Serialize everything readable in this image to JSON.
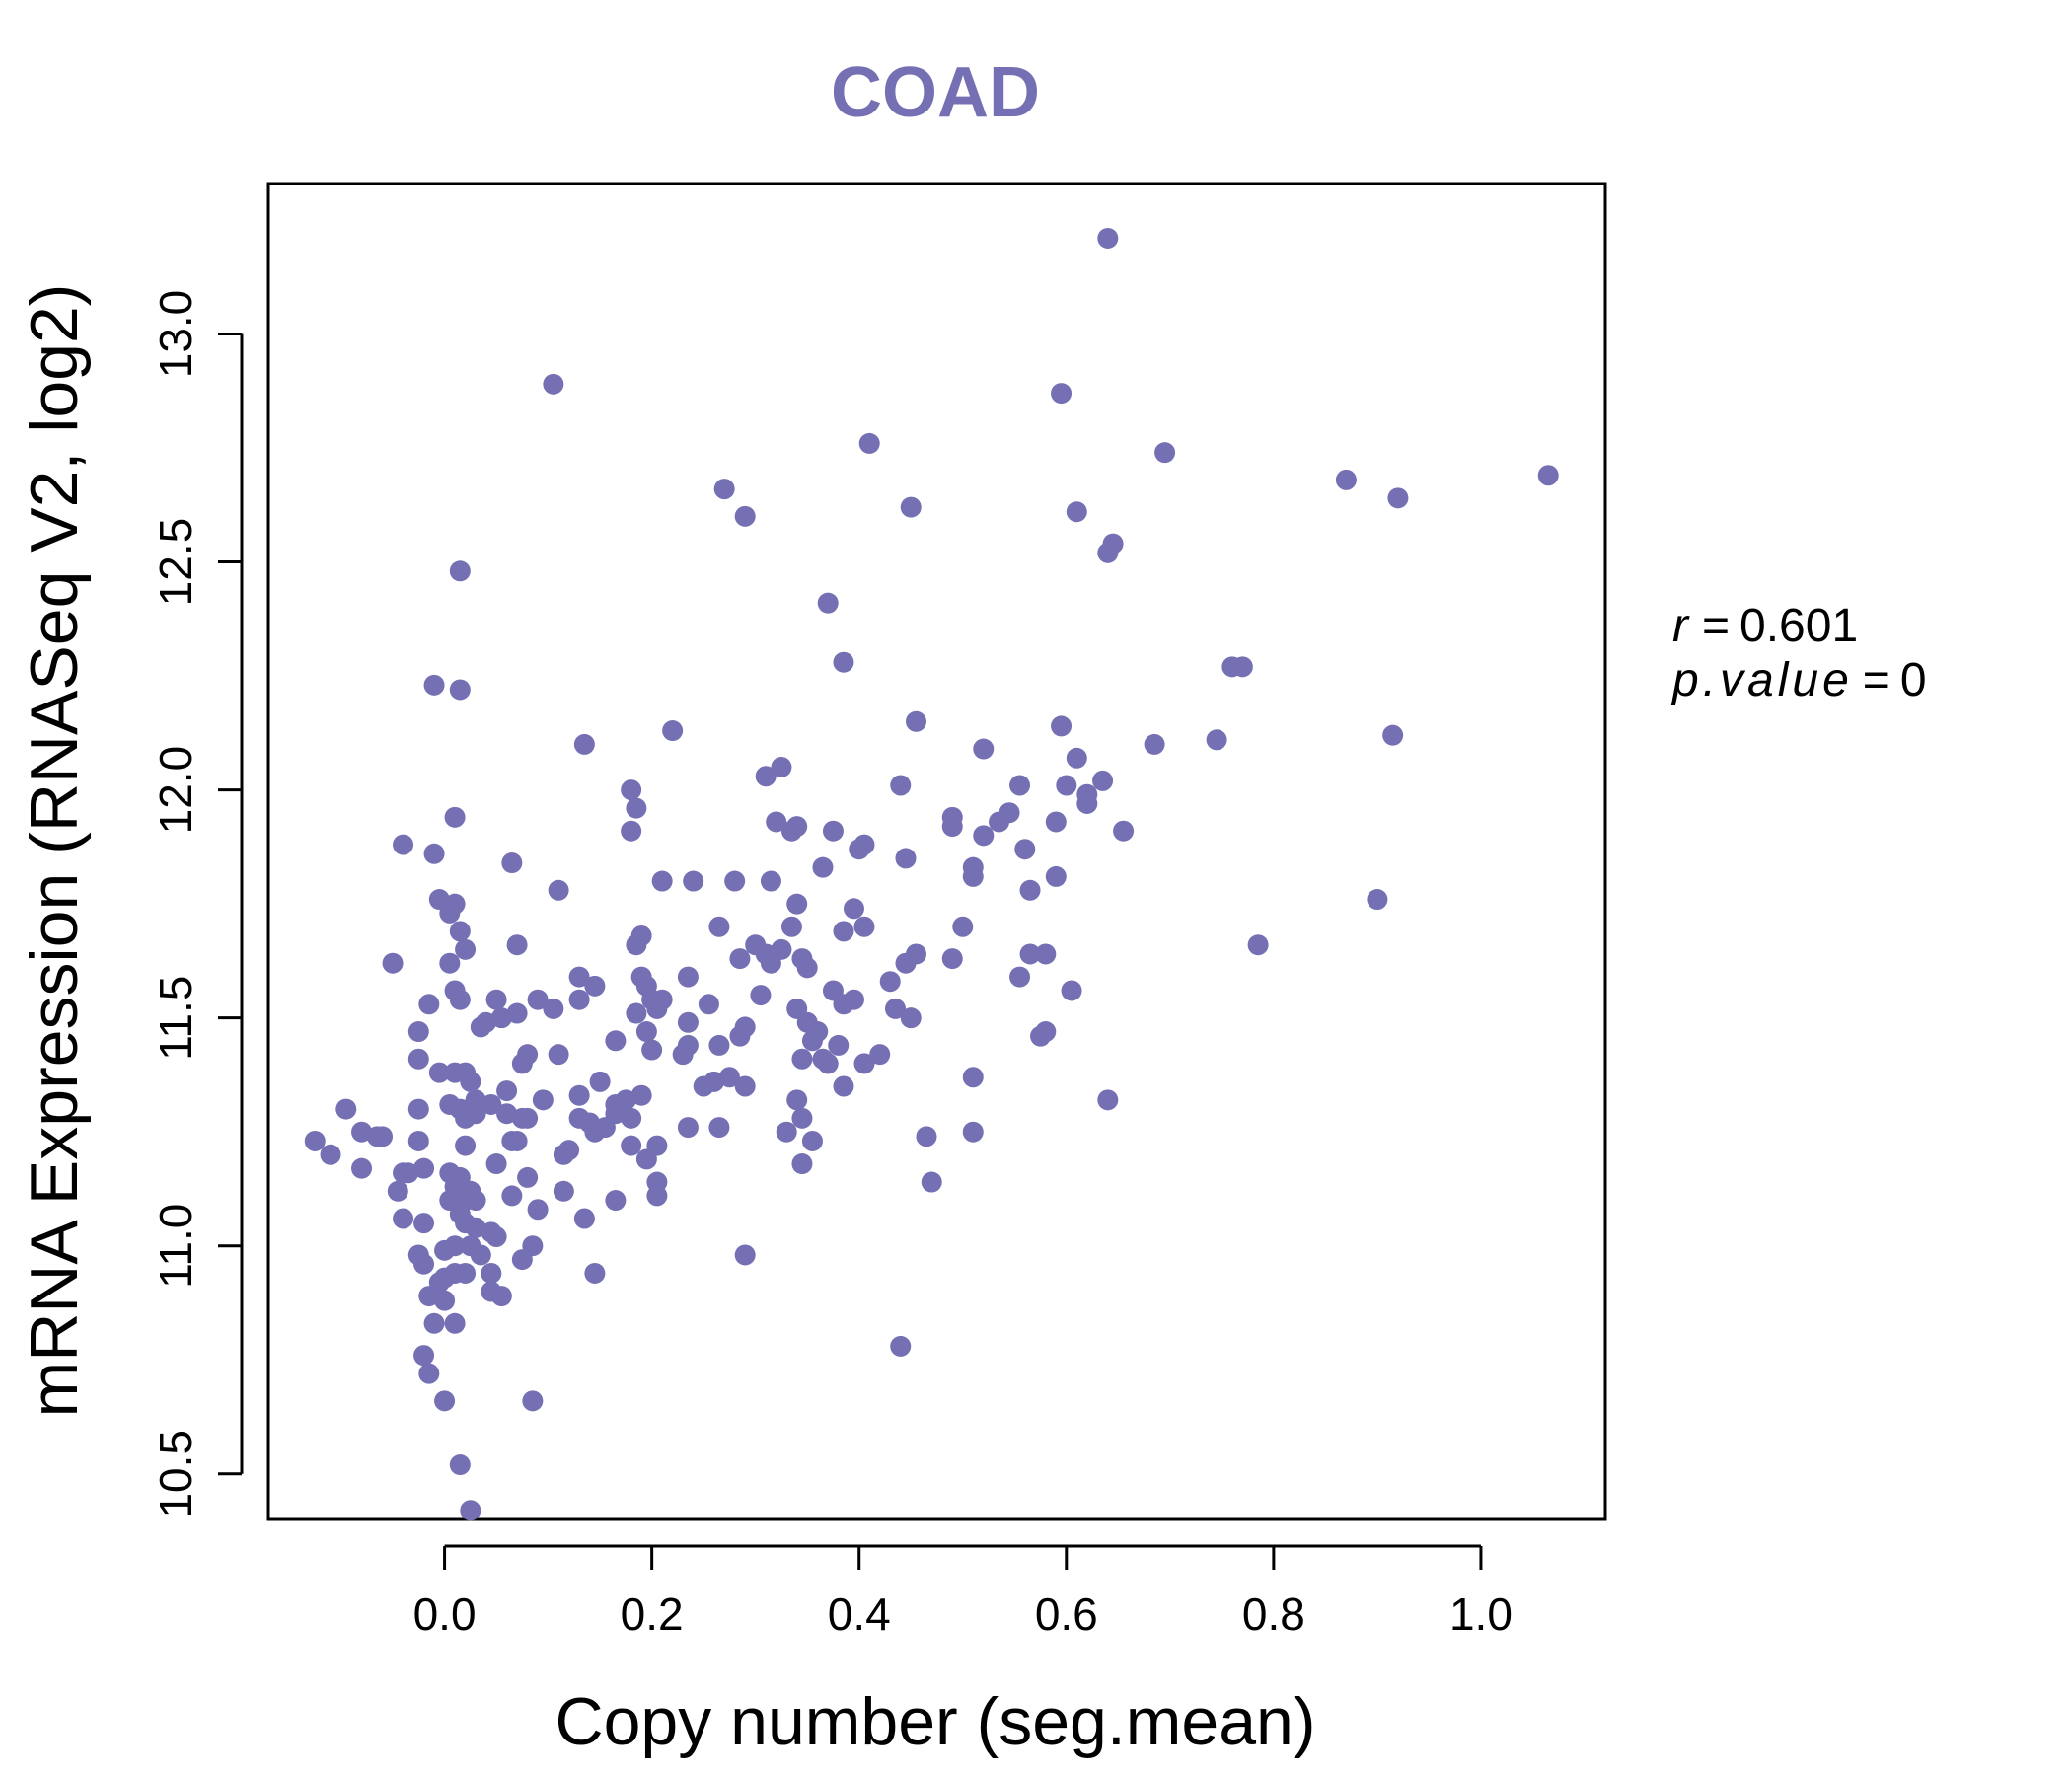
{
  "chart_data": {
    "type": "scatter",
    "title": "COAD",
    "xlabel": "Copy number (seg.mean)",
    "ylabel": "mRNA Expression (RNASeq V2, log2)",
    "xlim": [
      -0.17,
      1.12
    ],
    "ylim": [
      10.4,
      13.33
    ],
    "x_ticks": [
      0.0,
      0.2,
      0.4,
      0.6,
      0.8,
      1.0
    ],
    "x_tick_labels": [
      "0.0",
      "0.2",
      "0.4",
      "0.6",
      "0.8",
      "1.0"
    ],
    "y_ticks": [
      10.5,
      11.0,
      11.5,
      12.0,
      12.5,
      13.0
    ],
    "y_tick_labels": [
      "10.5",
      "11.0",
      "11.5",
      "12.0",
      "12.5",
      "13.0"
    ],
    "point_color": "#7570b3",
    "stats": {
      "r_label": "r",
      "r_value": "0.601",
      "p_label": "p.value",
      "p_value": "0"
    },
    "points": [
      [
        0.64,
        13.21
      ],
      [
        0.105,
        12.89
      ],
      [
        0.595,
        12.87
      ],
      [
        0.41,
        12.76
      ],
      [
        0.695,
        12.74
      ],
      [
        0.87,
        12.68
      ],
      [
        1.065,
        12.69
      ],
      [
        0.92,
        12.64
      ],
      [
        0.27,
        12.66
      ],
      [
        0.29,
        12.6
      ],
      [
        0.45,
        12.62
      ],
      [
        0.61,
        12.61
      ],
      [
        0.645,
        12.54
      ],
      [
        0.64,
        12.52
      ],
      [
        0.015,
        12.48
      ],
      [
        0.37,
        12.41
      ],
      [
        0.385,
        12.28
      ],
      [
        0.76,
        12.27
      ],
      [
        0.77,
        12.27
      ],
      [
        -0.01,
        12.23
      ],
      [
        0.015,
        12.22
      ],
      [
        0.455,
        12.15
      ],
      [
        0.595,
        12.14
      ],
      [
        0.22,
        12.13
      ],
      [
        0.915,
        12.12
      ],
      [
        0.135,
        12.1
      ],
      [
        0.52,
        12.09
      ],
      [
        0.685,
        12.1
      ],
      [
        0.745,
        12.11
      ],
      [
        0.61,
        12.07
      ],
      [
        0.31,
        12.03
      ],
      [
        0.325,
        12.05
      ],
      [
        0.44,
        12.01
      ],
      [
        0.555,
        12.01
      ],
      [
        0.6,
        12.01
      ],
      [
        0.62,
        11.99
      ],
      [
        0.635,
        12.02
      ],
      [
        0.18,
        12.0
      ],
      [
        0.185,
        11.96
      ],
      [
        0.62,
        11.97
      ],
      [
        0.545,
        11.95
      ],
      [
        0.49,
        11.94
      ],
      [
        0.49,
        11.92
      ],
      [
        0.01,
        11.94
      ],
      [
        0.32,
        11.93
      ],
      [
        0.335,
        11.91
      ],
      [
        0.34,
        11.92
      ],
      [
        0.375,
        11.91
      ],
      [
        0.535,
        11.93
      ],
      [
        0.59,
        11.93
      ],
      [
        0.655,
        11.91
      ],
      [
        0.18,
        11.91
      ],
      [
        0.52,
        11.9
      ],
      [
        0.4,
        11.87
      ],
      [
        0.405,
        11.88
      ],
      [
        -0.04,
        11.88
      ],
      [
        0.56,
        11.87
      ],
      [
        -0.01,
        11.86
      ],
      [
        0.065,
        11.84
      ],
      [
        0.445,
        11.85
      ],
      [
        0.365,
        11.83
      ],
      [
        0.51,
        11.83
      ],
      [
        0.51,
        11.81
      ],
      [
        0.21,
        11.8
      ],
      [
        0.24,
        11.8
      ],
      [
        0.28,
        11.8
      ],
      [
        0.315,
        11.8
      ],
      [
        0.59,
        11.81
      ],
      [
        0.11,
        11.78
      ],
      [
        0.565,
        11.78
      ],
      [
        -0.005,
        11.76
      ],
      [
        0.01,
        11.75
      ],
      [
        0.34,
        11.75
      ],
      [
        0.9,
        11.76
      ],
      [
        0.005,
        11.73
      ],
      [
        0.395,
        11.74
      ],
      [
        0.5,
        11.7
      ],
      [
        0.015,
        11.69
      ],
      [
        0.265,
        11.7
      ],
      [
        0.335,
        11.7
      ],
      [
        0.385,
        11.69
      ],
      [
        0.405,
        11.7
      ],
      [
        0.19,
        11.68
      ],
      [
        0.185,
        11.66
      ],
      [
        0.3,
        11.66
      ],
      [
        0.02,
        11.65
      ],
      [
        0.07,
        11.66
      ],
      [
        0.31,
        11.64
      ],
      [
        0.325,
        11.65
      ],
      [
        0.345,
        11.63
      ],
      [
        0.455,
        11.64
      ],
      [
        0.445,
        11.62
      ],
      [
        0.565,
        11.64
      ],
      [
        0.58,
        11.64
      ],
      [
        0.785,
        11.66
      ],
      [
        -0.05,
        11.62
      ],
      [
        0.35,
        11.61
      ],
      [
        0.49,
        11.63
      ],
      [
        0.005,
        11.62
      ],
      [
        0.315,
        11.62
      ],
      [
        0.285,
        11.63
      ],
      [
        0.13,
        11.59
      ],
      [
        0.235,
        11.59
      ],
      [
        0.19,
        11.59
      ],
      [
        0.555,
        11.59
      ],
      [
        0.43,
        11.58
      ],
      [
        0.195,
        11.57
      ],
      [
        0.145,
        11.57
      ],
      [
        0.01,
        11.56
      ],
      [
        0.375,
        11.56
      ],
      [
        0.605,
        11.56
      ],
      [
        0.305,
        11.55
      ],
      [
        0.05,
        11.54
      ],
      [
        0.09,
        11.54
      ],
      [
        0.13,
        11.54
      ],
      [
        0.2,
        11.54
      ],
      [
        0.21,
        11.54
      ],
      [
        0.255,
        11.53
      ],
      [
        0.385,
        11.53
      ],
      [
        0.395,
        11.54
      ],
      [
        -0.015,
        11.53
      ],
      [
        0.015,
        11.54
      ],
      [
        0.105,
        11.52
      ],
      [
        0.07,
        11.51
      ],
      [
        0.185,
        11.51
      ],
      [
        0.205,
        11.52
      ],
      [
        0.34,
        11.52
      ],
      [
        0.435,
        11.52
      ],
      [
        0.055,
        11.5
      ],
      [
        0.04,
        11.49
      ],
      [
        0.235,
        11.49
      ],
      [
        0.35,
        11.49
      ],
      [
        0.45,
        11.5
      ],
      [
        0.035,
        11.48
      ],
      [
        -0.025,
        11.47
      ],
      [
        0.29,
        11.48
      ],
      [
        0.195,
        11.47
      ],
      [
        0.285,
        11.46
      ],
      [
        0.36,
        11.47
      ],
      [
        0.355,
        11.45
      ],
      [
        0.58,
        11.47
      ],
      [
        0.575,
        11.46
      ],
      [
        0.165,
        11.45
      ],
      [
        0.265,
        11.44
      ],
      [
        0.38,
        11.44
      ],
      [
        0.2,
        11.43
      ],
      [
        0.23,
        11.42
      ],
      [
        0.235,
        11.44
      ],
      [
        0.11,
        11.42
      ],
      [
        0.08,
        11.42
      ],
      [
        0.345,
        11.41
      ],
      [
        0.365,
        11.41
      ],
      [
        0.42,
        11.42
      ],
      [
        -0.025,
        11.41
      ],
      [
        0.075,
        11.4
      ],
      [
        0.37,
        11.4
      ],
      [
        0.405,
        11.4
      ],
      [
        0.01,
        11.38
      ],
      [
        0.02,
        11.38
      ],
      [
        -0.005,
        11.38
      ],
      [
        0.275,
        11.37
      ],
      [
        0.025,
        11.36
      ],
      [
        0.15,
        11.36
      ],
      [
        0.26,
        11.36
      ],
      [
        0.25,
        11.35
      ],
      [
        0.29,
        11.35
      ],
      [
        0.385,
        11.35
      ],
      [
        0.51,
        11.37
      ],
      [
        0.06,
        11.34
      ],
      [
        0.13,
        11.33
      ],
      [
        0.19,
        11.33
      ],
      [
        0.34,
        11.32
      ],
      [
        0.03,
        11.32
      ],
      [
        0.045,
        11.31
      ],
      [
        0.005,
        11.31
      ],
      [
        0.095,
        11.32
      ],
      [
        0.165,
        11.31
      ],
      [
        0.175,
        11.32
      ],
      [
        0.64,
        11.32
      ],
      [
        -0.095,
        11.3
      ],
      [
        -0.025,
        11.3
      ],
      [
        0.015,
        11.3
      ],
      [
        0.03,
        11.29
      ],
      [
        0.06,
        11.29
      ],
      [
        0.075,
        11.28
      ],
      [
        0.08,
        11.28
      ],
      [
        0.165,
        11.29
      ],
      [
        0.18,
        11.28
      ],
      [
        0.345,
        11.28
      ],
      [
        0.02,
        11.28
      ],
      [
        0.13,
        11.28
      ],
      [
        0.14,
        11.27
      ],
      [
        0.145,
        11.25
      ],
      [
        0.155,
        11.26
      ],
      [
        0.235,
        11.26
      ],
      [
        0.265,
        11.26
      ],
      [
        0.33,
        11.25
      ],
      [
        0.51,
        11.25
      ],
      [
        -0.08,
        11.25
      ],
      [
        -0.065,
        11.24
      ],
      [
        -0.06,
        11.24
      ],
      [
        0.465,
        11.24
      ],
      [
        -0.125,
        11.23
      ],
      [
        -0.025,
        11.23
      ],
      [
        0.07,
        11.23
      ],
      [
        0.065,
        11.23
      ],
      [
        0.355,
        11.23
      ],
      [
        0.18,
        11.22
      ],
      [
        0.205,
        11.22
      ],
      [
        0.02,
        11.22
      ],
      [
        0.115,
        11.2
      ],
      [
        0.12,
        11.21
      ],
      [
        -0.11,
        11.2
      ],
      [
        0.195,
        11.19
      ],
      [
        0.345,
        11.18
      ],
      [
        -0.08,
        11.17
      ],
      [
        0.05,
        11.18
      ],
      [
        -0.02,
        11.17
      ],
      [
        -0.04,
        11.16
      ],
      [
        -0.035,
        11.16
      ],
      [
        0.005,
        11.16
      ],
      [
        0.015,
        11.15
      ],
      [
        0.08,
        11.15
      ],
      [
        0.205,
        11.14
      ],
      [
        0.47,
        11.14
      ],
      [
        -0.045,
        11.12
      ],
      [
        0.01,
        11.13
      ],
      [
        0.025,
        11.12
      ],
      [
        0.065,
        11.11
      ],
      [
        0.115,
        11.12
      ],
      [
        0.005,
        11.1
      ],
      [
        0.02,
        11.1
      ],
      [
        0.03,
        11.1
      ],
      [
        0.165,
        11.1
      ],
      [
        0.205,
        11.11
      ],
      [
        0.09,
        11.08
      ],
      [
        0.015,
        11.07
      ],
      [
        -0.04,
        11.06
      ],
      [
        0.135,
        11.06
      ],
      [
        -0.02,
        11.05
      ],
      [
        0.02,
        11.05
      ],
      [
        0.03,
        11.04
      ],
      [
        0.045,
        11.03
      ],
      [
        0.05,
        11.02
      ],
      [
        0.01,
        11.0
      ],
      [
        0.025,
        11.0
      ],
      [
        0.085,
        11.0
      ],
      [
        0.0,
        10.99
      ],
      [
        -0.025,
        10.98
      ],
      [
        0.035,
        10.98
      ],
      [
        0.075,
        10.97
      ],
      [
        0.29,
        10.98
      ],
      [
        -0.02,
        10.96
      ],
      [
        0.01,
        10.94
      ],
      [
        0.02,
        10.94
      ],
      [
        0.145,
        10.94
      ],
      [
        0.045,
        10.94
      ],
      [
        0.0,
        10.93
      ],
      [
        -0.005,
        10.92
      ],
      [
        0.045,
        10.9
      ],
      [
        0.055,
        10.89
      ],
      [
        -0.015,
        10.89
      ],
      [
        0.0,
        10.88
      ],
      [
        -0.01,
        10.83
      ],
      [
        0.01,
        10.83
      ],
      [
        0.44,
        10.78
      ],
      [
        -0.02,
        10.76
      ],
      [
        -0.015,
        10.72
      ],
      [
        0.0,
        10.66
      ],
      [
        0.085,
        10.66
      ],
      [
        0.015,
        10.52
      ],
      [
        0.025,
        10.42
      ]
    ]
  }
}
